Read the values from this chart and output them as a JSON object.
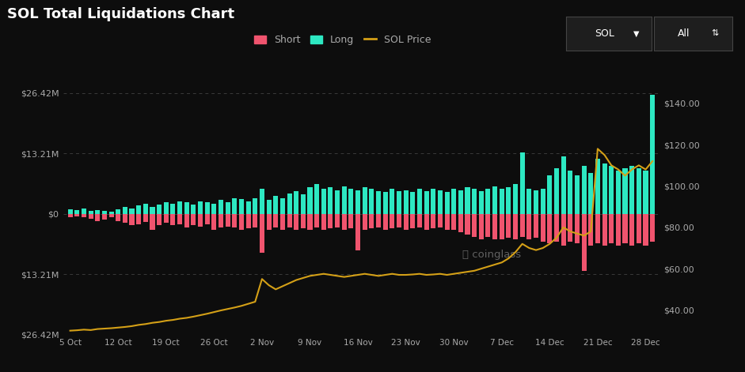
{
  "title": "SOL Total Liquidations Chart",
  "background_color": "#0d0d0d",
  "text_color": "#aaaaaa",
  "long_color": "#2de8c2",
  "short_color": "#f0546e",
  "price_color": "#d4a017",
  "left_ylim": [
    -26.42,
    26.42
  ],
  "right_ylim": [
    28,
    145
  ],
  "left_yticks": [
    26.42,
    13.21,
    0,
    -13.21,
    -26.42
  ],
  "left_yticklabels": [
    "$26.42M",
    "$13.21M",
    "$0",
    "$13.21M",
    "$26.42M"
  ],
  "right_yticks": [
    140,
    120,
    100,
    80,
    60,
    40
  ],
  "right_yticklabels": [
    "$140.00",
    "$120.00",
    "$100.00",
    "$80.00",
    "$60.00",
    "$40.00"
  ],
  "xtick_labels": [
    "5 Oct",
    "12 Oct",
    "19 Oct",
    "26 Oct",
    "2 Nov",
    "9 Nov",
    "16 Nov",
    "23 Nov",
    "30 Nov",
    "7 Dec",
    "14 Dec",
    "21 Dec",
    "28 Dec"
  ],
  "xtick_positions": [
    0,
    7,
    14,
    21,
    28,
    35,
    42,
    49,
    56,
    63,
    70,
    77,
    84
  ],
  "long_vals": [
    1.0,
    0.8,
    1.2,
    0.6,
    0.9,
    0.7,
    0.5,
    1.0,
    1.5,
    1.2,
    1.8,
    2.2,
    1.5,
    2.0,
    2.5,
    2.2,
    2.8,
    2.5,
    2.0,
    2.8,
    2.5,
    2.2,
    3.0,
    2.5,
    3.5,
    3.2,
    2.8,
    3.5,
    5.5,
    3.0,
    4.0,
    3.5,
    4.5,
    5.0,
    4.2,
    5.8,
    6.5,
    5.5,
    5.8,
    5.2,
    6.0,
    5.5,
    5.2,
    5.8,
    5.5,
    5.0,
    4.8,
    5.5,
    5.0,
    5.2,
    4.8,
    5.5,
    5.0,
    5.5,
    5.2,
    4.8,
    5.5,
    5.2,
    5.8,
    5.5,
    5.0,
    5.5,
    6.0,
    5.5,
    5.8,
    6.5,
    13.5,
    5.5,
    5.2,
    5.5,
    8.5,
    10.0,
    12.5,
    9.5,
    8.5,
    10.5,
    9.0,
    12.0,
    11.0,
    10.5,
    9.5,
    10.0,
    10.5,
    10.0,
    9.5,
    26.0
  ],
  "short_vals": [
    -0.8,
    -0.5,
    -0.7,
    -1.0,
    -1.5,
    -1.2,
    -0.8,
    -1.5,
    -2.0,
    -2.5,
    -2.2,
    -1.8,
    -3.5,
    -2.5,
    -2.0,
    -2.5,
    -2.2,
    -3.0,
    -2.5,
    -2.8,
    -2.2,
    -3.5,
    -3.0,
    -2.8,
    -3.0,
    -3.5,
    -3.2,
    -3.0,
    -8.5,
    -3.5,
    -3.0,
    -3.5,
    -3.0,
    -3.5,
    -3.2,
    -3.5,
    -3.0,
    -3.5,
    -3.2,
    -3.0,
    -3.5,
    -3.2,
    -8.0,
    -3.5,
    -3.2,
    -3.0,
    -3.5,
    -3.2,
    -3.0,
    -3.5,
    -3.2,
    -3.0,
    -3.5,
    -3.2,
    -3.0,
    -3.5,
    -3.5,
    -4.0,
    -4.5,
    -5.0,
    -5.5,
    -5.0,
    -5.5,
    -5.5,
    -5.2,
    -5.5,
    -5.0,
    -5.5,
    -5.2,
    -6.0,
    -6.5,
    -6.0,
    -7.0,
    -6.0,
    -6.5,
    -12.5,
    -7.0,
    -6.5,
    -7.0,
    -6.5,
    -7.0,
    -6.5,
    -7.0,
    -6.5,
    -7.0,
    -6.0
  ],
  "sol_price": [
    30.0,
    30.2,
    30.5,
    30.3,
    30.8,
    31.0,
    31.2,
    31.5,
    31.8,
    32.2,
    32.8,
    33.2,
    33.8,
    34.2,
    34.8,
    35.2,
    35.8,
    36.2,
    36.8,
    37.5,
    38.2,
    39.0,
    39.8,
    40.5,
    41.2,
    42.0,
    43.0,
    44.0,
    55.0,
    52.0,
    50.0,
    51.5,
    53.0,
    54.5,
    55.5,
    56.5,
    57.0,
    57.5,
    57.0,
    56.5,
    56.0,
    56.5,
    57.0,
    57.5,
    57.0,
    56.5,
    57.0,
    57.5,
    57.0,
    57.0,
    57.2,
    57.5,
    57.0,
    57.2,
    57.5,
    57.0,
    57.5,
    58.0,
    58.5,
    59.0,
    60.0,
    61.0,
    62.0,
    63.0,
    65.0,
    68.0,
    72.0,
    70.0,
    69.0,
    70.0,
    72.0,
    75.0,
    80.0,
    78.0,
    77.0,
    76.0,
    78.0,
    118.0,
    115.0,
    110.0,
    108.0,
    105.0,
    108.0,
    110.0,
    108.0,
    112.0
  ]
}
